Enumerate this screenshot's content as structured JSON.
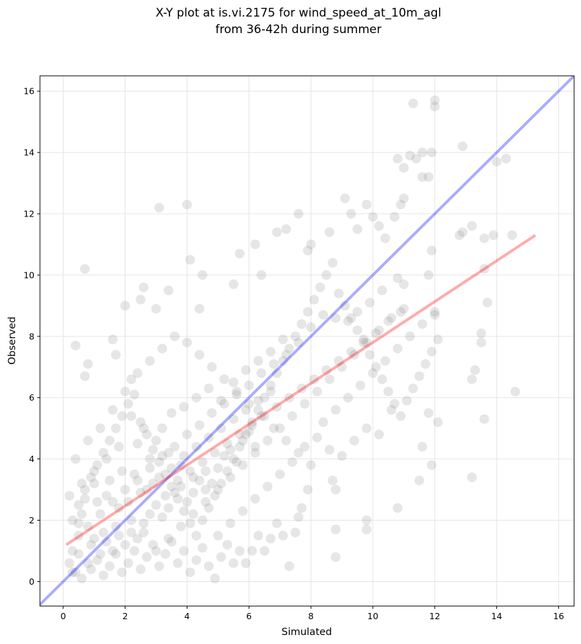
{
  "chart_data": {
    "type": "scatter",
    "title": [
      "X-Y plot at is.vi.2175 for wind_speed_at_10m_agl",
      "from 36-42h during summer"
    ],
    "xlabel": "Simulated",
    "ylabel": "Observed",
    "xlim": [
      -0.75,
      16.5
    ],
    "ylim": [
      -0.8,
      16.5
    ],
    "xticks": [
      0,
      2,
      4,
      6,
      8,
      10,
      12,
      14,
      16
    ],
    "yticks": [
      0,
      2,
      4,
      6,
      8,
      10,
      12,
      14,
      16
    ],
    "grid": true,
    "reference_line": {
      "color": "#0000ff",
      "slope": 1,
      "intercept": 0
    },
    "fit_line": {
      "color": "#ff0000",
      "x": [
        0.1,
        15.25
      ],
      "y": [
        1.2,
        11.3
      ]
    },
    "points_color": "#808080",
    "points": [
      [
        0.7,
        10.2
      ],
      [
        3.1,
        12.2
      ],
      [
        4.0,
        12.3
      ],
      [
        2.6,
        9.6
      ],
      [
        3.0,
        8.9
      ],
      [
        3.4,
        9.5
      ],
      [
        2.5,
        9.2
      ],
      [
        2.0,
        9.0
      ],
      [
        4.1,
        10.5
      ],
      [
        0.4,
        7.7
      ],
      [
        0.8,
        7.1
      ],
      [
        0.7,
        6.7
      ],
      [
        1.6,
        7.9
      ],
      [
        1.7,
        7.4
      ],
      [
        2.2,
        6.6
      ],
      [
        4.5,
        10.0
      ],
      [
        4.4,
        8.9
      ],
      [
        5.7,
        10.7
      ],
      [
        5.5,
        9.7
      ],
      [
        6.2,
        11.0
      ],
      [
        6.4,
        10.0
      ],
      [
        6.9,
        11.4
      ],
      [
        7.2,
        11.5
      ],
      [
        7.6,
        12.0
      ],
      [
        8.0,
        11.0
      ],
      [
        7.9,
        10.8
      ],
      [
        8.6,
        11.4
      ],
      [
        9.1,
        12.5
      ],
      [
        9.3,
        12.0
      ],
      [
        9.5,
        11.5
      ],
      [
        9.8,
        12.3
      ],
      [
        10.0,
        11.9
      ],
      [
        10.2,
        11.6
      ],
      [
        10.4,
        11.2
      ],
      [
        11.3,
        15.6
      ],
      [
        12.0,
        15.5
      ],
      [
        12.0,
        15.7
      ],
      [
        11.2,
        13.9
      ],
      [
        11.4,
        13.8
      ],
      [
        11.6,
        14.0
      ],
      [
        11.6,
        13.2
      ],
      [
        11.8,
        13.2
      ],
      [
        11.9,
        14.0
      ],
      [
        11.0,
        12.5
      ],
      [
        10.9,
        12.3
      ],
      [
        10.7,
        11.9
      ],
      [
        11.0,
        13.5
      ],
      [
        10.8,
        13.8
      ],
      [
        12.9,
        14.2
      ],
      [
        12.9,
        11.4
      ],
      [
        13.2,
        11.6
      ],
      [
        12.8,
        11.3
      ],
      [
        13.9,
        11.3
      ],
      [
        14.3,
        13.8
      ],
      [
        14.0,
        13.7
      ],
      [
        14.5,
        11.3
      ],
      [
        13.6,
        11.2
      ],
      [
        13.6,
        10.2
      ],
      [
        13.7,
        9.1
      ],
      [
        13.5,
        8.1
      ],
      [
        13.5,
        7.8
      ],
      [
        13.3,
        6.9
      ],
      [
        13.2,
        6.6
      ],
      [
        14.6,
        6.2
      ],
      [
        13.6,
        5.3
      ],
      [
        13.2,
        3.4
      ],
      [
        11.9,
        3.8
      ],
      [
        11.8,
        5.5
      ],
      [
        12.1,
        5.2
      ],
      [
        11.5,
        3.3
      ],
      [
        11.6,
        4.4
      ],
      [
        10.8,
        2.4
      ],
      [
        9.8,
        1.7
      ],
      [
        9.8,
        2.0
      ],
      [
        8.8,
        0.8
      ],
      [
        8.8,
        1.7
      ],
      [
        8.8,
        3.0
      ],
      [
        8.7,
        3.3
      ],
      [
        12.0,
        8.7
      ],
      [
        11.8,
        10.0
      ],
      [
        11.9,
        10.8
      ],
      [
        11.0,
        9.7
      ],
      [
        10.8,
        9.9
      ],
      [
        10.3,
        9.5
      ],
      [
        9.9,
        9.1
      ],
      [
        9.5,
        8.8
      ],
      [
        9.2,
        8.5
      ],
      [
        8.8,
        8.6
      ],
      [
        8.4,
        8.7
      ],
      [
        8.0,
        8.3
      ],
      [
        7.6,
        7.8
      ],
      [
        7.2,
        7.4
      ],
      [
        6.8,
        7.1
      ],
      [
        6.4,
        6.8
      ],
      [
        6.0,
        6.4
      ],
      [
        5.6,
        6.1
      ],
      [
        5.2,
        5.8
      ],
      [
        4.8,
        5.5
      ],
      [
        4.4,
        5.1
      ],
      [
        4.0,
        4.8
      ],
      [
        3.6,
        4.4
      ],
      [
        3.2,
        4.1
      ],
      [
        2.8,
        3.7
      ],
      [
        2.4,
        3.3
      ],
      [
        2.0,
        3.0
      ],
      [
        1.6,
        2.6
      ],
      [
        1.2,
        2.2
      ],
      [
        0.8,
        1.8
      ],
      [
        0.5,
        1.5
      ],
      [
        0.3,
        1.0
      ],
      [
        0.2,
        0.6
      ],
      [
        0.4,
        0.3
      ],
      [
        0.6,
        0.1
      ],
      [
        0.9,
        0.4
      ],
      [
        1.1,
        0.7
      ],
      [
        1.3,
        0.2
      ],
      [
        1.5,
        0.5
      ],
      [
        1.7,
        0.9
      ],
      [
        1.9,
        0.3
      ],
      [
        2.1,
        0.6
      ],
      [
        2.3,
        1.0
      ],
      [
        2.5,
        0.4
      ],
      [
        2.7,
        0.8
      ],
      [
        2.9,
        1.2
      ],
      [
        3.1,
        0.5
      ],
      [
        3.3,
        0.9
      ],
      [
        3.5,
        1.3
      ],
      [
        3.7,
        0.6
      ],
      [
        3.9,
        1.0
      ],
      [
        4.1,
        0.3
      ],
      [
        4.3,
        0.7
      ],
      [
        4.5,
        1.1
      ],
      [
        4.7,
        0.5
      ],
      [
        4.9,
        0.1
      ],
      [
        5.1,
        0.8
      ],
      [
        5.3,
        1.2
      ],
      [
        5.5,
        0.6
      ],
      [
        5.7,
        1.0
      ],
      [
        5.9,
        0.6
      ],
      [
        6.1,
        1.0
      ],
      [
        6.3,
        1.5
      ],
      [
        6.5,
        1.0
      ],
      [
        6.7,
        1.4
      ],
      [
        6.9,
        1.9
      ],
      [
        7.1,
        1.5
      ],
      [
        7.3,
        0.5
      ],
      [
        7.5,
        1.6
      ],
      [
        7.7,
        2.4
      ],
      [
        7.9,
        3.0
      ],
      [
        7.6,
        2.1
      ],
      [
        0.3,
        2.0
      ],
      [
        0.5,
        2.5
      ],
      [
        0.7,
        3.0
      ],
      [
        0.9,
        3.4
      ],
      [
        1.1,
        3.8
      ],
      [
        1.3,
        4.2
      ],
      [
        1.5,
        4.6
      ],
      [
        1.7,
        5.0
      ],
      [
        1.9,
        5.4
      ],
      [
        2.1,
        5.8
      ],
      [
        2.3,
        6.1
      ],
      [
        2.5,
        5.2
      ],
      [
        2.7,
        4.8
      ],
      [
        2.9,
        4.3
      ],
      [
        3.1,
        3.9
      ],
      [
        3.3,
        3.5
      ],
      [
        3.5,
        3.1
      ],
      [
        3.7,
        2.7
      ],
      [
        3.9,
        2.3
      ],
      [
        4.1,
        1.9
      ],
      [
        4.3,
        1.5
      ],
      [
        4.5,
        2.0
      ],
      [
        4.7,
        2.4
      ],
      [
        4.9,
        2.8
      ],
      [
        5.1,
        3.2
      ],
      [
        5.3,
        3.6
      ],
      [
        5.5,
        4.0
      ],
      [
        5.7,
        4.4
      ],
      [
        5.9,
        4.8
      ],
      [
        6.1,
        5.2
      ],
      [
        6.3,
        5.6
      ],
      [
        6.5,
        6.0
      ],
      [
        6.7,
        6.4
      ],
      [
        6.9,
        6.8
      ],
      [
        7.1,
        7.2
      ],
      [
        7.3,
        7.6
      ],
      [
        7.5,
        8.0
      ],
      [
        7.7,
        8.4
      ],
      [
        7.9,
        8.8
      ],
      [
        8.1,
        9.2
      ],
      [
        8.3,
        9.6
      ],
      [
        8.5,
        10.0
      ],
      [
        8.7,
        10.4
      ],
      [
        8.9,
        9.4
      ],
      [
        9.1,
        9.0
      ],
      [
        9.3,
        8.6
      ],
      [
        9.5,
        8.2
      ],
      [
        9.7,
        7.8
      ],
      [
        9.9,
        7.4
      ],
      [
        10.1,
        7.0
      ],
      [
        10.3,
        6.6
      ],
      [
        10.5,
        6.2
      ],
      [
        10.7,
        5.8
      ],
      [
        10.9,
        5.4
      ],
      [
        11.1,
        5.9
      ],
      [
        11.3,
        6.3
      ],
      [
        11.5,
        6.7
      ],
      [
        11.7,
        7.1
      ],
      [
        11.9,
        7.5
      ],
      [
        12.1,
        7.9
      ],
      [
        9.0,
        4.1
      ],
      [
        9.4,
        4.6
      ],
      [
        9.8,
        5.0
      ],
      [
        10.2,
        4.8
      ],
      [
        10.6,
        5.6
      ],
      [
        8.6,
        4.3
      ],
      [
        8.2,
        4.7
      ],
      [
        7.8,
        4.4
      ],
      [
        7.4,
        3.9
      ],
      [
        7.0,
        3.5
      ],
      [
        6.6,
        3.1
      ],
      [
        6.2,
        2.7
      ],
      [
        5.8,
        2.3
      ],
      [
        5.4,
        1.9
      ],
      [
        5.0,
        1.5
      ],
      [
        4.6,
        3.0
      ],
      [
        4.2,
        3.4
      ],
      [
        3.8,
        3.8
      ],
      [
        3.4,
        4.2
      ],
      [
        3.0,
        4.6
      ],
      [
        2.6,
        5.0
      ],
      [
        2.2,
        5.4
      ],
      [
        1.8,
        4.4
      ],
      [
        1.4,
        4.0
      ],
      [
        1.0,
        3.6
      ],
      [
        0.6,
        3.2
      ],
      [
        0.2,
        2.8
      ],
      [
        0.4,
        4.0
      ],
      [
        0.8,
        4.6
      ],
      [
        1.2,
        5.0
      ],
      [
        1.6,
        5.6
      ],
      [
        2.0,
        6.2
      ],
      [
        2.4,
        6.8
      ],
      [
        2.8,
        7.2
      ],
      [
        3.2,
        7.6
      ],
      [
        3.6,
        8.0
      ],
      [
        4.0,
        7.8
      ],
      [
        4.4,
        7.4
      ],
      [
        4.8,
        7.0
      ],
      [
        5.2,
        6.6
      ],
      [
        5.6,
        6.2
      ],
      [
        6.0,
        5.8
      ],
      [
        6.4,
        5.4
      ],
      [
        6.8,
        5.0
      ],
      [
        7.2,
        4.6
      ],
      [
        7.6,
        4.2
      ],
      [
        8.0,
        3.8
      ],
      [
        8.4,
        5.2
      ],
      [
        8.8,
        5.6
      ],
      [
        9.2,
        6.0
      ],
      [
        9.6,
        6.4
      ],
      [
        10.0,
        6.8
      ],
      [
        10.4,
        7.2
      ],
      [
        10.8,
        7.6
      ],
      [
        11.2,
        8.0
      ],
      [
        11.6,
        8.4
      ],
      [
        12.0,
        8.8
      ],
      [
        11.0,
        8.9
      ],
      [
        10.6,
        8.6
      ],
      [
        10.2,
        8.2
      ],
      [
        9.8,
        7.8
      ],
      [
        9.4,
        7.4
      ],
      [
        9.0,
        7.0
      ],
      [
        8.6,
        6.6
      ],
      [
        8.2,
        6.2
      ],
      [
        7.8,
        5.8
      ],
      [
        7.4,
        5.4
      ],
      [
        7.0,
        5.0
      ],
      [
        6.6,
        4.6
      ],
      [
        6.2,
        4.2
      ],
      [
        5.8,
        3.8
      ],
      [
        5.4,
        3.4
      ],
      [
        5.0,
        3.0
      ],
      [
        4.6,
        2.6
      ],
      [
        4.2,
        2.2
      ],
      [
        3.8,
        1.8
      ],
      [
        3.4,
        1.4
      ],
      [
        3.0,
        1.0
      ],
      [
        2.6,
        1.6
      ],
      [
        2.2,
        2.0
      ],
      [
        1.8,
        2.4
      ],
      [
        1.4,
        2.8
      ],
      [
        1.0,
        3.2
      ],
      [
        0.6,
        2.2
      ],
      [
        0.9,
        1.2
      ],
      [
        1.3,
        1.6
      ],
      [
        1.7,
        1.8
      ],
      [
        2.1,
        2.6
      ],
      [
        2.5,
        2.9
      ],
      [
        2.9,
        3.2
      ],
      [
        3.3,
        2.8
      ],
      [
        3.7,
        3.3
      ],
      [
        4.1,
        3.6
      ],
      [
        4.5,
        3.9
      ],
      [
        4.9,
        4.2
      ],
      [
        5.3,
        4.5
      ],
      [
        5.7,
        4.8
      ],
      [
        6.1,
        5.1
      ],
      [
        6.5,
        5.4
      ],
      [
        6.9,
        5.7
      ],
      [
        7.3,
        6.0
      ],
      [
        7.7,
        6.3
      ],
      [
        8.1,
        6.6
      ],
      [
        8.5,
        6.9
      ],
      [
        8.9,
        7.2
      ],
      [
        9.3,
        7.5
      ],
      [
        9.7,
        7.9
      ],
      [
        10.1,
        8.1
      ],
      [
        10.5,
        8.5
      ],
      [
        10.9,
        8.8
      ],
      [
        0.3,
        0.3
      ],
      [
        0.5,
        0.9
      ],
      [
        0.8,
        0.6
      ],
      [
        1.0,
        1.4
      ],
      [
        1.2,
        0.9
      ],
      [
        1.4,
        1.3
      ],
      [
        1.6,
        1.0
      ],
      [
        1.8,
        1.5
      ],
      [
        2.0,
        1.2
      ],
      [
        2.2,
        1.6
      ],
      [
        2.4,
        1.4
      ],
      [
        2.6,
        1.9
      ],
      [
        2.8,
        2.2
      ],
      [
        3.0,
        2.5
      ],
      [
        3.2,
        2.1
      ],
      [
        3.4,
        2.4
      ],
      [
        3.6,
        2.9
      ],
      [
        3.8,
        3.1
      ],
      [
        4.0,
        2.6
      ],
      [
        4.2,
        2.9
      ],
      [
        4.4,
        3.3
      ],
      [
        4.6,
        3.6
      ],
      [
        4.8,
        3.2
      ],
      [
        5.0,
        3.7
      ],
      [
        5.2,
        4.1
      ],
      [
        5.4,
        4.3
      ],
      [
        5.6,
        3.9
      ],
      [
        5.8,
        4.6
      ],
      [
        6.0,
        4.9
      ],
      [
        6.2,
        4.4
      ],
      [
        3.5,
        5.5
      ],
      [
        3.9,
        5.7
      ],
      [
        4.3,
        6.0
      ],
      [
        4.7,
        6.3
      ],
      [
        5.1,
        5.9
      ],
      [
        5.5,
        6.5
      ],
      [
        5.9,
        6.9
      ],
      [
        6.3,
        7.2
      ],
      [
        6.7,
        7.5
      ],
      [
        7.1,
        7.9
      ],
      [
        2.4,
        4.5
      ],
      [
        2.8,
        4.0
      ],
      [
        3.2,
        5.0
      ],
      [
        1.5,
        3.3
      ],
      [
        1.1,
        2.6
      ],
      [
        0.7,
        2.7
      ],
      [
        0.5,
        1.9
      ],
      [
        1.9,
        3.6
      ],
      [
        2.3,
        3.5
      ],
      [
        2.7,
        3.0
      ],
      [
        3.1,
        3.4
      ],
      [
        3.5,
        3.7
      ],
      [
        3.9,
        4.1
      ],
      [
        4.3,
        4.4
      ],
      [
        4.7,
        4.7
      ],
      [
        5.1,
        5.0
      ],
      [
        5.5,
        5.3
      ],
      [
        5.9,
        5.6
      ],
      [
        6.3,
        5.9
      ],
      [
        6.7,
        6.2
      ]
    ]
  }
}
